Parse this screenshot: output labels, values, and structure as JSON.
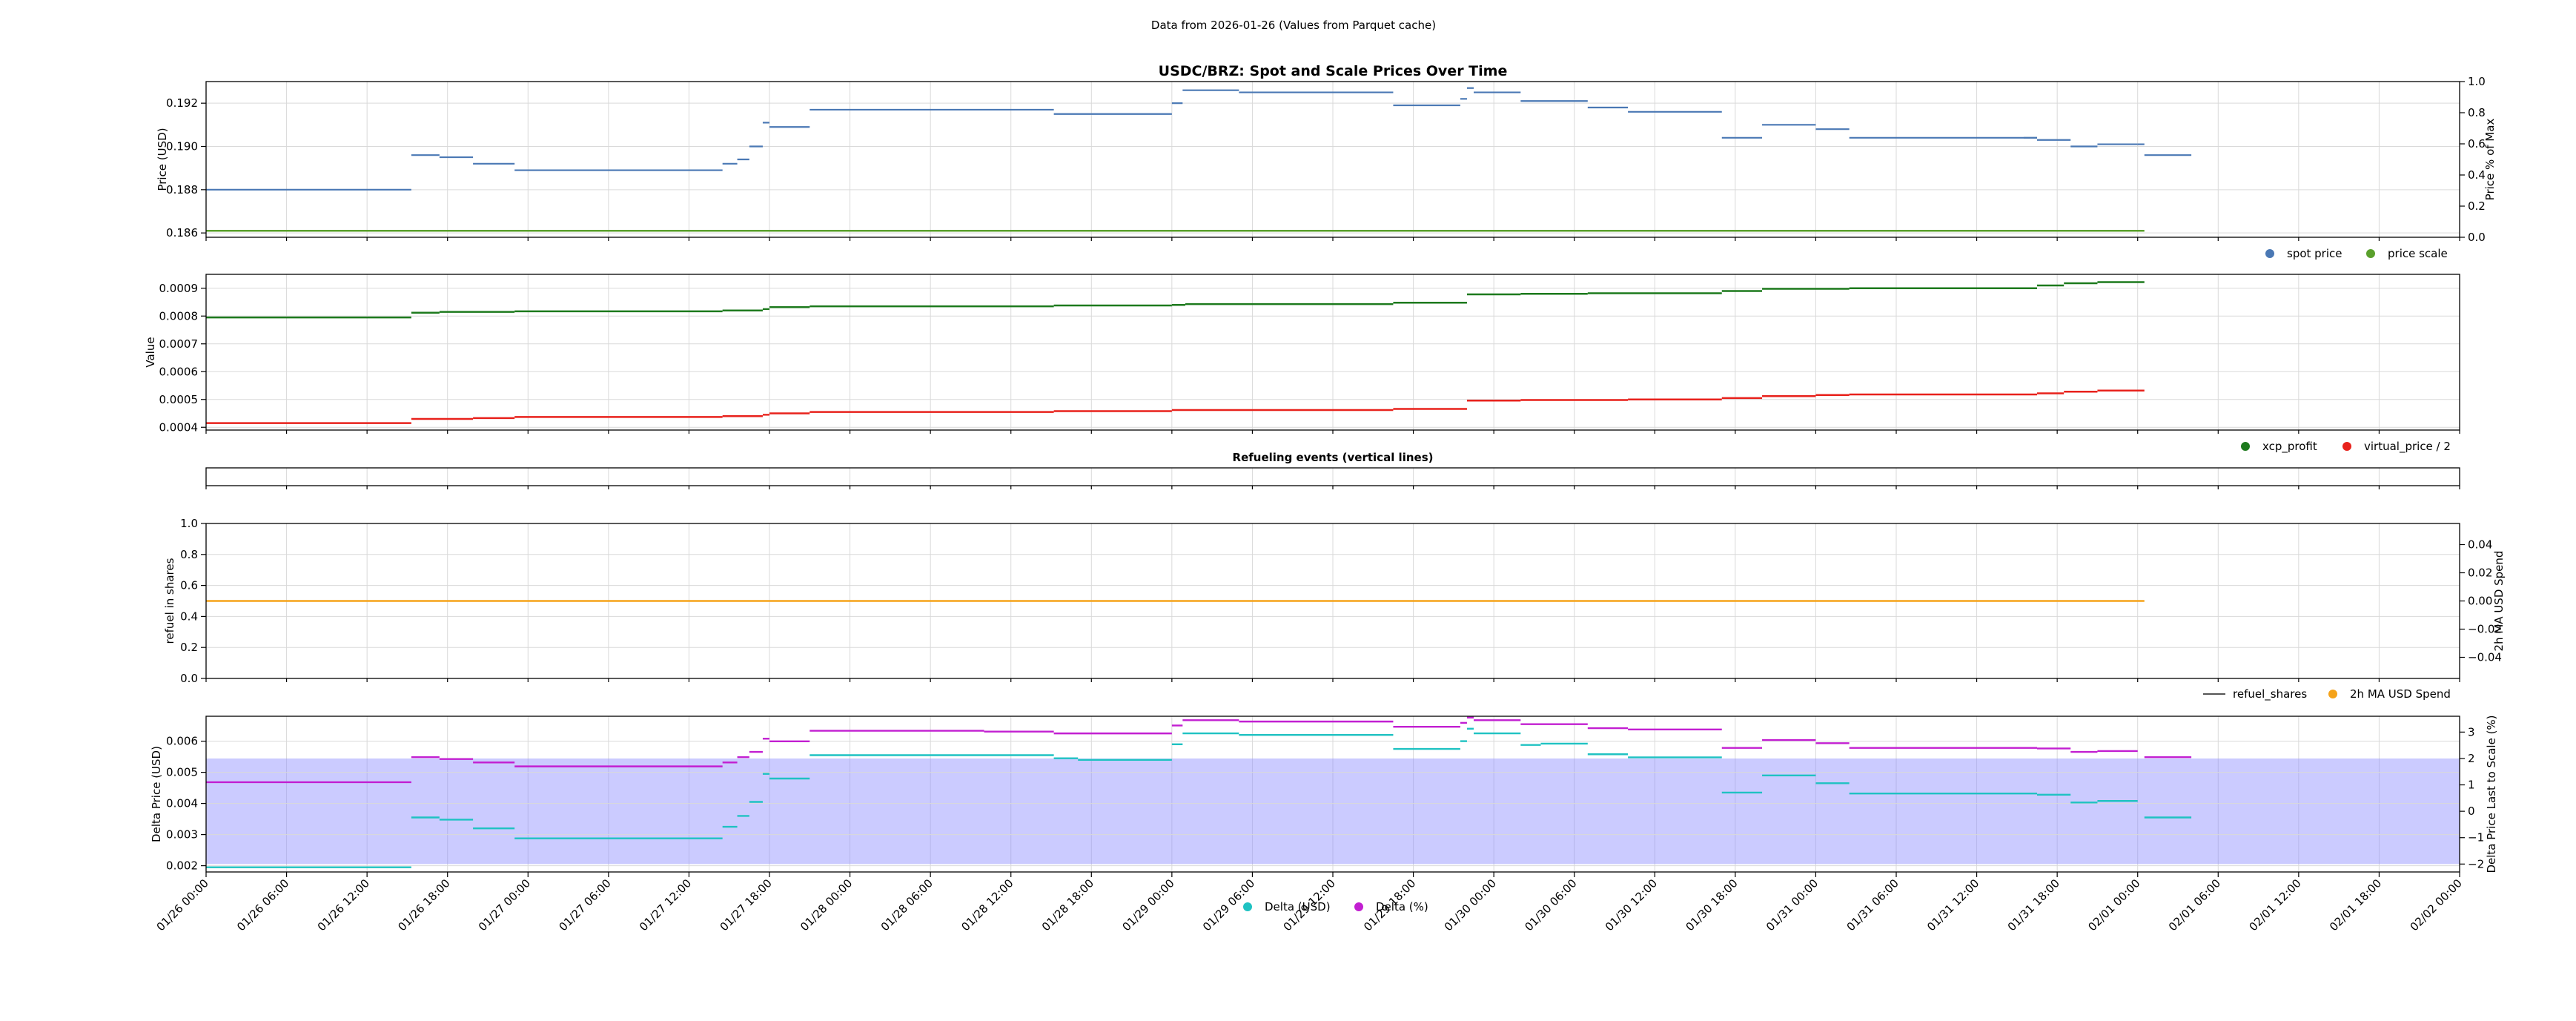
{
  "figure": {
    "suptitle": "Data from 2026-01-26 (Values from Parquet cache)"
  },
  "colors": {
    "spot": "#4a78b4",
    "scale": "#5aa02c",
    "xcp": "#1d7a1d",
    "virtual": "#e8221c",
    "refuel": "#555555",
    "ma": "#f5a31a",
    "delta_usd": "#1fc2c2",
    "delta_pct": "#c21fd1",
    "band": "#8c8cff"
  },
  "x_ticks": [
    "01/26 00:00",
    "01/26 06:00",
    "01/26 12:00",
    "01/26 18:00",
    "01/27 00:00",
    "01/27 06:00",
    "01/27 12:00",
    "01/27 18:00",
    "01/28 00:00",
    "01/28 06:00",
    "01/28 12:00",
    "01/28 18:00",
    "01/29 00:00",
    "01/29 06:00",
    "01/29 12:00",
    "01/29 18:00",
    "01/30 00:00",
    "01/30 06:00",
    "01/30 12:00",
    "01/30 18:00",
    "01/31 00:00",
    "01/31 06:00",
    "01/31 12:00",
    "01/31 18:00",
    "02/01 00:00",
    "02/01 06:00",
    "02/01 12:00",
    "02/01 18:00",
    "02/02 00:00"
  ],
  "chart_data": [
    {
      "type": "line",
      "title": "USDC/BRZ: Spot and Scale Prices Over Time",
      "ylabel": "Price (USD)",
      "y2label": "Price % of Max",
      "ylim": [
        0.1858,
        0.193
      ],
      "yticks": [
        "0.186",
        "0.188",
        "0.190",
        "0.192"
      ],
      "ytick_values": [
        0.186,
        0.188,
        0.19,
        0.192
      ],
      "y2ticks": [
        "0.0",
        "0.2",
        "0.4",
        "0.6",
        "0.8",
        "1.0"
      ],
      "legend": [
        "spot price",
        "price scale"
      ],
      "legend_loc": "lower-right-outside",
      "series": [
        {
          "name": "spot price",
          "segments": [
            [
              0,
              15.3,
              0.188
            ],
            [
              15.3,
              17.4,
              0.1896
            ],
            [
              17.4,
              19.9,
              0.1895
            ],
            [
              19.9,
              23.0,
              0.1892
            ],
            [
              23.0,
              38.5,
              0.1889
            ],
            [
              38.5,
              39.6,
              0.1892
            ],
            [
              39.6,
              40.5,
              0.1894
            ],
            [
              40.5,
              41.5,
              0.19
            ],
            [
              41.5,
              42.0,
              0.1911
            ],
            [
              42.0,
              45.0,
              0.1909
            ],
            [
              45.0,
              63.2,
              0.1917
            ],
            [
              63.2,
              72.0,
              0.1915
            ],
            [
              72.0,
              72.8,
              0.192
            ],
            [
              72.8,
              77.0,
              0.1926
            ],
            [
              77.0,
              88.5,
              0.1925
            ],
            [
              88.5,
              93.5,
              0.1919
            ],
            [
              93.5,
              94.0,
              0.1922
            ],
            [
              94.0,
              94.5,
              0.1927
            ],
            [
              94.5,
              98.0,
              0.1925
            ],
            [
              98.0,
              103.0,
              0.1921
            ],
            [
              103.0,
              106.0,
              0.1918
            ],
            [
              106.0,
              113.0,
              0.1916
            ],
            [
              113.0,
              116.0,
              0.1904
            ],
            [
              116.0,
              120.0,
              0.191
            ],
            [
              120.0,
              122.5,
              0.1908
            ],
            [
              122.5,
              136.5,
              0.1904
            ],
            [
              136.5,
              135.5,
              0.1904
            ],
            [
              136.5,
              139.0,
              0.1903
            ],
            [
              139.0,
              141.0,
              0.19
            ],
            [
              141.0,
              144.0,
              0.1901
            ],
            [
              144.0,
              144.5,
              0.1901
            ],
            [
              144.5,
              148.0,
              0.1896
            ]
          ]
        },
        {
          "name": "price scale",
          "segments": [
            [
              0,
              144.5,
              0.1861
            ]
          ]
        }
      ]
    },
    {
      "type": "line",
      "ylabel": "Value",
      "ylim": [
        0.00039,
        0.00095
      ],
      "yticks": [
        "0.0004",
        "0.0005",
        "0.0006",
        "0.0007",
        "0.0008",
        "0.0009"
      ],
      "ytick_values": [
        0.0004,
        0.0005,
        0.0006,
        0.0007,
        0.0008,
        0.0009
      ],
      "legend": [
        "xcp_profit",
        "virtual_price / 2"
      ],
      "legend_loc": "lower-right-outside",
      "series": [
        {
          "name": "xcp_profit",
          "segments": [
            [
              0,
              15.3,
              0.000795
            ],
            [
              15.3,
              17.4,
              0.000812
            ],
            [
              17.4,
              23.0,
              0.000815
            ],
            [
              23.0,
              38.5,
              0.000817
            ],
            [
              38.5,
              41.5,
              0.00082
            ],
            [
              41.5,
              42.0,
              0.000825
            ],
            [
              42.0,
              45.0,
              0.000832
            ],
            [
              45.0,
              63.2,
              0.000835
            ],
            [
              63.2,
              72.0,
              0.000838
            ],
            [
              72.0,
              73.0,
              0.00084
            ],
            [
              73.0,
              88.5,
              0.000843
            ],
            [
              88.5,
              94.0,
              0.000848
            ],
            [
              94.0,
              98.0,
              0.000878
            ],
            [
              98.0,
              103.0,
              0.00088
            ],
            [
              103.0,
              113.0,
              0.000882
            ],
            [
              113.0,
              116.0,
              0.00089
            ],
            [
              116.0,
              122.5,
              0.000898
            ],
            [
              122.5,
              136.5,
              0.0009
            ],
            [
              136.5,
              138.5,
              0.00091
            ],
            [
              138.5,
              141.0,
              0.000918
            ],
            [
              141.0,
              144.5,
              0.000922
            ]
          ]
        },
        {
          "name": "virtual_price / 2",
          "segments": [
            [
              0,
              15.3,
              0.000415
            ],
            [
              15.3,
              19.9,
              0.00043
            ],
            [
              19.9,
              23.0,
              0.000433
            ],
            [
              23.0,
              38.5,
              0.000437
            ],
            [
              38.5,
              41.5,
              0.00044
            ],
            [
              41.5,
              42.0,
              0.000445
            ],
            [
              42.0,
              45.0,
              0.00045
            ],
            [
              45.0,
              63.2,
              0.000455
            ],
            [
              63.2,
              72.0,
              0.000458
            ],
            [
              72.0,
              88.5,
              0.000462
            ],
            [
              88.5,
              94.0,
              0.000466
            ],
            [
              94.0,
              98.0,
              0.000496
            ],
            [
              98.0,
              106.0,
              0.000498
            ],
            [
              106.0,
              113.0,
              0.0005
            ],
            [
              113.0,
              116.0,
              0.000505
            ],
            [
              116.0,
              120.0,
              0.000512
            ],
            [
              120.0,
              122.5,
              0.000516
            ],
            [
              122.5,
              136.5,
              0.000518
            ],
            [
              136.5,
              138.5,
              0.000522
            ],
            [
              138.5,
              141.0,
              0.000528
            ],
            [
              141.0,
              144.5,
              0.000532
            ]
          ]
        }
      ]
    },
    {
      "type": "line",
      "title": "Refueling events (vertical lines)",
      "series": []
    },
    {
      "type": "line",
      "ylabel": "refuel in shares",
      "y2label": "2h MA USD Spend",
      "ylim": [
        0,
        1
      ],
      "yticks": [
        "0.0",
        "0.2",
        "0.4",
        "0.6",
        "0.8",
        "1.0"
      ],
      "ytick_values": [
        0,
        0.2,
        0.4,
        0.6,
        0.8,
        1.0
      ],
      "y2ticks": [
        "−0.04",
        "−0.02",
        "0.00",
        "0.02",
        "0.04"
      ],
      "y2tick_values": [
        -0.04,
        -0.02,
        0.0,
        0.02,
        0.04
      ],
      "y2lim": [
        -0.055,
        0.055
      ],
      "legend": [
        "refuel_shares",
        "2h MA USD Spend"
      ],
      "legend_loc": "lower-right-outside",
      "series": [
        {
          "name": "2h MA USD Spend",
          "axis": "right",
          "segments": [
            [
              0,
              144.5,
              0.0
            ]
          ]
        }
      ]
    },
    {
      "type": "line",
      "ylabel": "Delta Price (USD)",
      "y2label": "Delta Price Last to Scale (%)",
      "ylim": [
        0.0018,
        0.0068
      ],
      "yticks": [
        "0.002",
        "0.003",
        "0.004",
        "0.005",
        "0.006"
      ],
      "ytick_values": [
        0.002,
        0.003,
        0.004,
        0.005,
        0.006
      ],
      "y2ticks": [
        "−2",
        "−1",
        "0",
        "1",
        "2",
        "3"
      ],
      "y2tick_values": [
        -2,
        -1,
        0,
        1,
        2,
        3
      ],
      "y2lim": [
        -2.3,
        3.6
      ],
      "band_pct": [
        -2,
        2
      ],
      "legend": [
        "Delta (USD)",
        "Delta (%)"
      ],
      "legend_loc": "below",
      "series": [
        {
          "name": "Delta (USD)",
          "segments": [
            [
              0,
              15.3,
              0.00195
            ],
            [
              15.3,
              17.4,
              0.00355
            ],
            [
              17.4,
              19.9,
              0.00348
            ],
            [
              19.9,
              23.0,
              0.0032
            ],
            [
              23.0,
              38.5,
              0.00288
            ],
            [
              38.5,
              39.6,
              0.00325
            ],
            [
              39.6,
              40.5,
              0.0036
            ],
            [
              40.5,
              41.5,
              0.00405
            ],
            [
              41.5,
              42.0,
              0.00495
            ],
            [
              42.0,
              45.0,
              0.0048
            ],
            [
              45.0,
              63.2,
              0.00555
            ],
            [
              63.2,
              65.0,
              0.00545
            ],
            [
              65.0,
              72.0,
              0.0054
            ],
            [
              72.0,
              72.8,
              0.0059
            ],
            [
              72.8,
              77.0,
              0.00625
            ],
            [
              77.0,
              88.5,
              0.0062
            ],
            [
              88.5,
              93.5,
              0.00575
            ],
            [
              93.5,
              94.0,
              0.006
            ],
            [
              94.0,
              94.5,
              0.0064
            ],
            [
              94.5,
              98.0,
              0.00625
            ],
            [
              98.0,
              99.5,
              0.00588
            ],
            [
              99.5,
              103.0,
              0.00592
            ],
            [
              103.0,
              106.0,
              0.00558
            ],
            [
              106.0,
              113.0,
              0.00548
            ],
            [
              113.0,
              116.0,
              0.00435
            ],
            [
              116.0,
              120.0,
              0.0049
            ],
            [
              120.0,
              122.5,
              0.00465
            ],
            [
              122.5,
              136.5,
              0.00432
            ],
            [
              136.5,
              139.0,
              0.00428
            ],
            [
              139.0,
              141.0,
              0.00403
            ],
            [
              141.0,
              144.0,
              0.00408
            ],
            [
              144.5,
              148.0,
              0.00355
            ]
          ]
        },
        {
          "name": "Delta (%)",
          "axis": "right",
          "segments": [
            [
              0,
              15.3,
              1.1
            ],
            [
              15.3,
              17.4,
              2.05
            ],
            [
              17.4,
              19.9,
              1.98
            ],
            [
              19.9,
              23.0,
              1.85
            ],
            [
              23.0,
              38.5,
              1.7
            ],
            [
              38.5,
              39.6,
              1.85
            ],
            [
              39.6,
              40.5,
              2.05
            ],
            [
              40.5,
              41.5,
              2.25
            ],
            [
              41.5,
              42.0,
              2.75
            ],
            [
              42.0,
              45.0,
              2.65
            ],
            [
              45.0,
              58.0,
              3.05
            ],
            [
              58.0,
              63.2,
              3.02
            ],
            [
              63.2,
              72.0,
              2.95
            ],
            [
              72.0,
              72.8,
              3.25
            ],
            [
              72.8,
              77.0,
              3.45
            ],
            [
              77.0,
              88.5,
              3.4
            ],
            [
              88.5,
              93.5,
              3.2
            ],
            [
              93.5,
              94.0,
              3.35
            ],
            [
              94.0,
              94.5,
              3.55
            ],
            [
              94.5,
              98.0,
              3.45
            ],
            [
              98.0,
              103.0,
              3.3
            ],
            [
              103.0,
              106.0,
              3.15
            ],
            [
              106.0,
              113.0,
              3.1
            ],
            [
              113.0,
              116.0,
              2.4
            ],
            [
              116.0,
              120.0,
              2.7
            ],
            [
              120.0,
              122.5,
              2.58
            ],
            [
              122.5,
              136.5,
              2.4
            ],
            [
              136.5,
              139.0,
              2.38
            ],
            [
              139.0,
              141.0,
              2.25
            ],
            [
              141.0,
              144.0,
              2.28
            ],
            [
              144.5,
              148.0,
              2.05
            ]
          ]
        }
      ]
    }
  ]
}
